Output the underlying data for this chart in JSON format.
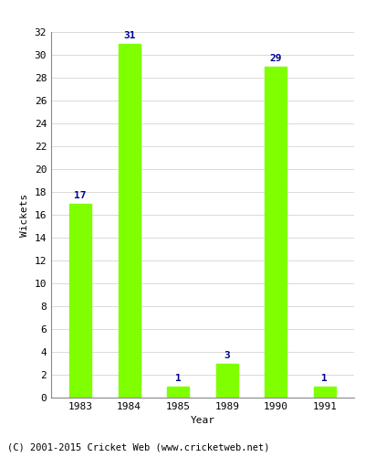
{
  "years": [
    "1983",
    "1984",
    "1985",
    "1989",
    "1990",
    "1991"
  ],
  "values": [
    17,
    31,
    1,
    3,
    29,
    1
  ],
  "bar_color": "#7fff00",
  "bar_edge_color": "#7fff00",
  "label_color": "#00008b",
  "xlabel": "Year",
  "ylabel": "Wickets",
  "ylim": [
    0,
    32
  ],
  "yticks": [
    0,
    2,
    4,
    6,
    8,
    10,
    12,
    14,
    16,
    18,
    20,
    22,
    24,
    26,
    28,
    30,
    32
  ],
  "footer": "(C) 2001-2015 Cricket Web (www.cricketweb.net)",
  "label_fontsize": 8,
  "axis_fontsize": 8,
  "footer_fontsize": 7.5,
  "bar_width": 0.45
}
